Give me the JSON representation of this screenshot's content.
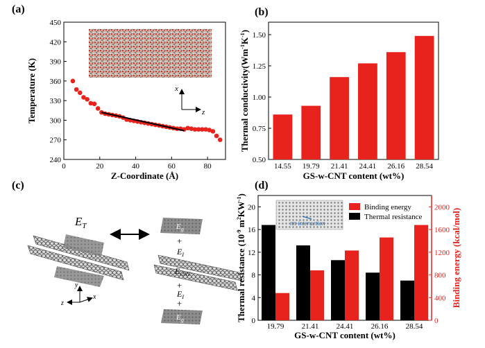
{
  "panels": {
    "a": "(a)",
    "b": "(b)",
    "c": "(c)",
    "d": "(d)"
  },
  "axis_labels": {
    "x": "x",
    "z": "z",
    "y": "y"
  },
  "schematic": {
    "et": "E",
    "et_sub": "T",
    "eg_top": "E",
    "eg_top_sub": "g",
    "ei_1": "E",
    "ei_1_sub": "I",
    "ecnt": "E",
    "ecnt_sub": "CNT",
    "ei_2": "E",
    "ei_2_sub": "I",
    "eg_bottom": "E",
    "eg_bottom_sub": "g",
    "plus_1": "+",
    "plus_2": "+",
    "plus_3": "+",
    "plus_4": "+"
  },
  "colors": {
    "red": "#e8231e",
    "black": "#000000"
  },
  "chart_data": [
    {
      "panel": "a",
      "type": "scatter",
      "xlabel": "Z-Coordinate (Å)",
      "ylabel": "Temperature (K)",
      "xlim": [
        0,
        90
      ],
      "ylim": [
        240,
        450
      ],
      "xticks": [
        "0",
        "20",
        "40",
        "60",
        "80"
      ],
      "yticks": [
        "240",
        "270",
        "300",
        "330",
        "360",
        "390",
        "420",
        "450"
      ],
      "points": [
        [
          5,
          360
        ],
        [
          7,
          347
        ],
        [
          9,
          342
        ],
        [
          11,
          335
        ],
        [
          13,
          332
        ],
        [
          15,
          326
        ],
        [
          17,
          325
        ],
        [
          19,
          318
        ],
        [
          21,
          312
        ],
        [
          23,
          310
        ],
        [
          25,
          309
        ],
        [
          27,
          308
        ],
        [
          29,
          307
        ],
        [
          31,
          306
        ],
        [
          33,
          304
        ],
        [
          35,
          301
        ],
        [
          37,
          300
        ],
        [
          39,
          299
        ],
        [
          41,
          298
        ],
        [
          43,
          297
        ],
        [
          45,
          296
        ],
        [
          47,
          295
        ],
        [
          49,
          294
        ],
        [
          51,
          293
        ],
        [
          53,
          292
        ],
        [
          55,
          291
        ],
        [
          57,
          290
        ],
        [
          59,
          289
        ],
        [
          61,
          288
        ],
        [
          63,
          287
        ],
        [
          65,
          287
        ],
        [
          67,
          286
        ],
        [
          69,
          288
        ],
        [
          71,
          287
        ],
        [
          73,
          286
        ],
        [
          75,
          286
        ],
        [
          77,
          286
        ],
        [
          79,
          286
        ],
        [
          81,
          285
        ],
        [
          83,
          283
        ],
        [
          85,
          276
        ],
        [
          87,
          270
        ]
      ],
      "fit_line": [
        [
          21,
          312
        ],
        [
          67,
          284
        ]
      ]
    },
    {
      "panel": "b",
      "type": "bar",
      "xlabel": "GS-w-CNT content (wt%)",
      "ylabel": "Thermal conductivity(W m-1 K-1)",
      "ylabel_parts": [
        "Thermal conductivity(W",
        "m",
        "-1",
        "K",
        "-1",
        ")"
      ],
      "categories": [
        "14.55",
        "19.79",
        "21.41",
        "24.41",
        "26.16",
        "28.54"
      ],
      "values": [
        0.86,
        0.93,
        1.16,
        1.27,
        1.36,
        1.49
      ],
      "ylim": [
        0.5,
        1.6
      ],
      "yticks": [
        "0.50",
        "0.75",
        "1.00",
        "1.25",
        "1.50"
      ]
    },
    {
      "panel": "d",
      "type": "bar",
      "xlabel": "GS-w-CNT content (wt%)",
      "ylabel_left": "Thermal resistance (10-9 m2KW-1)",
      "ylabel_left_parts": [
        "Thermal resistance (10",
        "-9",
        " m",
        "2",
        "KW",
        "-1",
        ")"
      ],
      "ylabel_right": "Binding energy (kcal/mol)",
      "categories": [
        "19.79",
        "21.41",
        "24.41",
        "26.16",
        "28.54"
      ],
      "series": [
        {
          "name": "Thermal resistance",
          "axis": "left",
          "color": "#000000",
          "values": [
            16.8,
            13.2,
            10.6,
            8.4,
            7.0
          ]
        },
        {
          "name": "Binding energy",
          "axis": "right",
          "color": "#e8231e",
          "values": [
            480,
            880,
            1230,
            1460,
            1680
          ]
        }
      ],
      "ylim_left": [
        0,
        22
      ],
      "ylim_right": [
        0,
        2200
      ],
      "yticks_left": [
        "0",
        "4",
        "8",
        "12",
        "16",
        "20"
      ],
      "yticks_right": [
        "0",
        "400",
        "800",
        "1200",
        "1600",
        "2000"
      ],
      "legend": [
        "Binding energy",
        "Thermal resistance"
      ],
      "inset_label": "ππ interaction"
    }
  ]
}
